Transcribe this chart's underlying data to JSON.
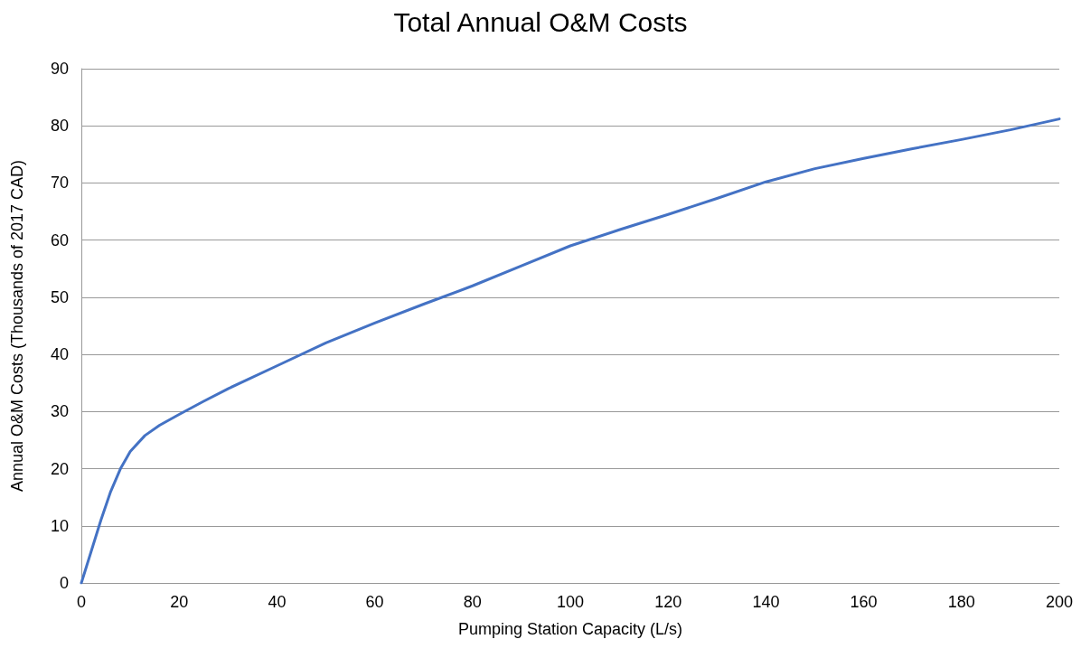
{
  "chart_data": {
    "type": "line",
    "title": "Total Annual O&M Costs",
    "xlabel": "Pumping Station Capacity (L/s)",
    "ylabel": "Annual O&M Costs (Thousands of 2017 CAD)",
    "x": [
      0,
      2,
      4,
      6,
      8,
      10,
      13,
      16,
      20,
      25,
      30,
      40,
      50,
      60,
      70,
      80,
      90,
      100,
      110,
      120,
      130,
      140,
      150,
      160,
      170,
      180,
      190,
      200
    ],
    "series": [
      {
        "color": "#4472c4",
        "values": [
          0,
          5.5,
          11,
          16,
          20,
          23,
          25.8,
          27.6,
          29.5,
          31.8,
          34,
          38,
          42,
          45.5,
          48.8,
          52,
          55.5,
          59,
          61.8,
          64.5,
          67.3,
          70.2,
          72.5,
          74.3,
          76,
          77.6,
          79.3,
          81.2
        ]
      }
    ],
    "xlim": [
      0,
      200
    ],
    "xticks": [
      0,
      20,
      40,
      60,
      80,
      100,
      120,
      140,
      160,
      180,
      200
    ],
    "ylim": [
      0,
      90
    ],
    "yticks": [
      0,
      10,
      20,
      30,
      40,
      50,
      60,
      70,
      80,
      90
    ],
    "grid": "y",
    "marker": "none",
    "line_style": "solid"
  }
}
